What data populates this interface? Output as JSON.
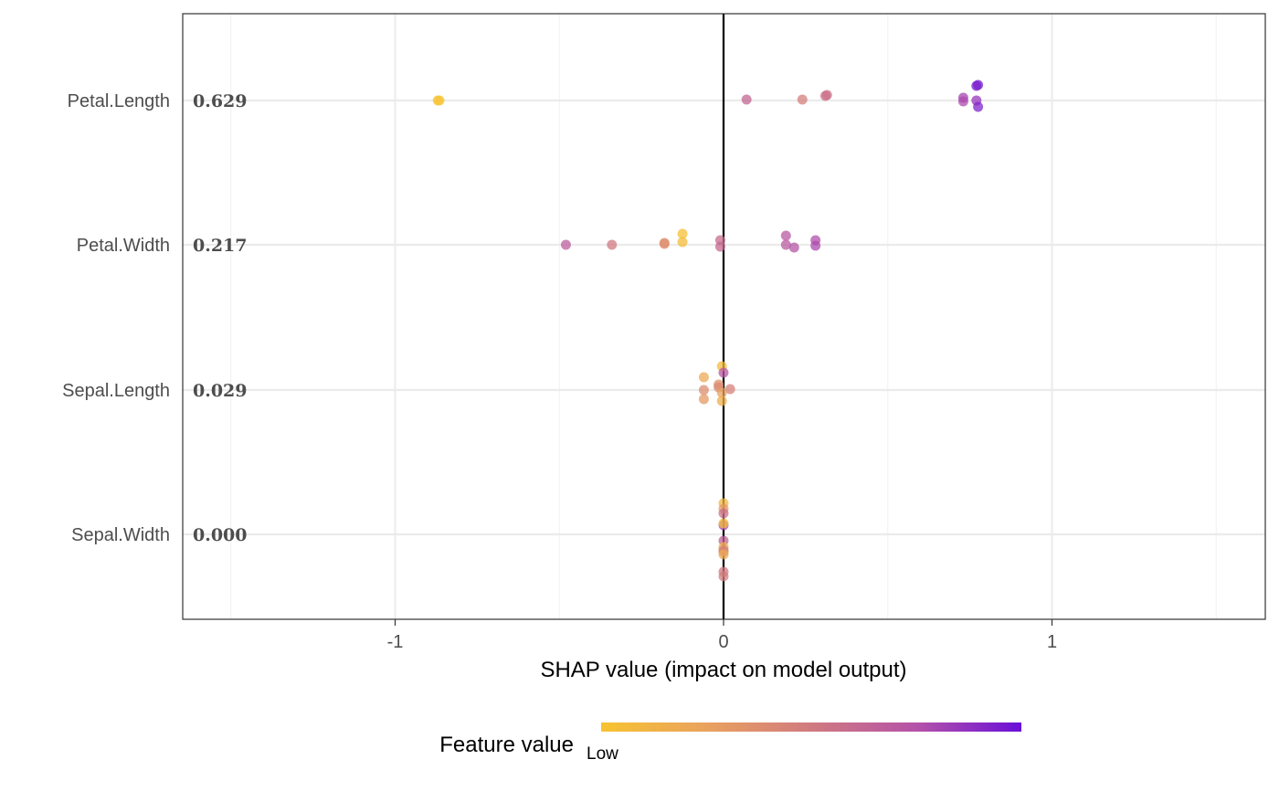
{
  "chart_data": {
    "type": "scatter",
    "xlabel": "SHAP value (impact on model output)",
    "xlim": [
      -1.5,
      1.65
    ],
    "x_ticks": [
      -1,
      0,
      1
    ],
    "x_tick_labels": [
      "-1",
      "0",
      "1"
    ],
    "x_minor_ticks": [
      -1.5,
      -0.5,
      0.5,
      1.5
    ],
    "grid": true,
    "zero_line": 0,
    "features": [
      {
        "name": "Petal.Length",
        "importance": "0.629"
      },
      {
        "name": "Petal.Width",
        "importance": "0.217"
      },
      {
        "name": "Sepal.Length",
        "importance": "0.029"
      },
      {
        "name": "Sepal.Width",
        "importance": "0.000"
      }
    ],
    "points": [
      {
        "feature": "Petal.Length",
        "shap": -0.87,
        "value": 0.0
      },
      {
        "feature": "Petal.Length",
        "shap": -0.865,
        "value": 0.0
      },
      {
        "feature": "Petal.Length",
        "shap": 0.07,
        "value": 0.62
      },
      {
        "feature": "Petal.Length",
        "shap": 0.24,
        "value": 0.47
      },
      {
        "feature": "Petal.Length",
        "shap": 0.315,
        "value": 0.57
      },
      {
        "feature": "Petal.Length",
        "shap": 0.31,
        "value": 0.55
      },
      {
        "feature": "Petal.Length",
        "shap": 0.73,
        "value": 0.8
      },
      {
        "feature": "Petal.Length",
        "shap": 0.73,
        "value": 0.78
      },
      {
        "feature": "Petal.Length",
        "shap": 0.77,
        "value": 0.96
      },
      {
        "feature": "Petal.Length",
        "shap": 0.775,
        "value": 0.95
      },
      {
        "feature": "Petal.Length",
        "shap": 0.77,
        "value": 0.85
      },
      {
        "feature": "Petal.Length",
        "shap": 0.775,
        "value": 0.92
      },
      {
        "feature": "Petal.Width",
        "shap": -0.48,
        "value": 0.68
      },
      {
        "feature": "Petal.Width",
        "shap": -0.34,
        "value": 0.5
      },
      {
        "feature": "Petal.Width",
        "shap": -0.18,
        "value": 0.38
      },
      {
        "feature": "Petal.Width",
        "shap": -0.18,
        "value": 0.36
      },
      {
        "feature": "Petal.Width",
        "shap": -0.125,
        "value": 0.03
      },
      {
        "feature": "Petal.Width",
        "shap": -0.125,
        "value": 0.05
      },
      {
        "feature": "Petal.Width",
        "shap": -0.01,
        "value": 0.58
      },
      {
        "feature": "Petal.Width",
        "shap": -0.01,
        "value": 0.6
      },
      {
        "feature": "Petal.Width",
        "shap": 0.19,
        "value": 0.72
      },
      {
        "feature": "Petal.Width",
        "shap": 0.19,
        "value": 0.7
      },
      {
        "feature": "Petal.Width",
        "shap": 0.215,
        "value": 0.74
      },
      {
        "feature": "Petal.Width",
        "shap": 0.28,
        "value": 0.76
      },
      {
        "feature": "Petal.Width",
        "shap": 0.28,
        "value": 0.78
      },
      {
        "feature": "Sepal.Length",
        "shap": -0.005,
        "value": 0.05
      },
      {
        "feature": "Sepal.Length",
        "shap": 0.0,
        "value": 0.72
      },
      {
        "feature": "Sepal.Length",
        "shap": -0.06,
        "value": 0.2
      },
      {
        "feature": "Sepal.Length",
        "shap": -0.015,
        "value": 0.35
      },
      {
        "feature": "Sepal.Length",
        "shap": -0.015,
        "value": 0.4
      },
      {
        "feature": "Sepal.Length",
        "shap": 0.02,
        "value": 0.45
      },
      {
        "feature": "Sepal.Length",
        "shap": -0.06,
        "value": 0.38
      },
      {
        "feature": "Sepal.Length",
        "shap": -0.06,
        "value": 0.3
      },
      {
        "feature": "Sepal.Length",
        "shap": -0.005,
        "value": 0.25
      },
      {
        "feature": "Sepal.Length",
        "shap": -0.005,
        "value": 0.15
      },
      {
        "feature": "Sepal.Width",
        "shap": 0.0,
        "value": 0.1
      },
      {
        "feature": "Sepal.Width",
        "shap": 0.0,
        "value": 0.3
      },
      {
        "feature": "Sepal.Width",
        "shap": 0.0,
        "value": 0.55
      },
      {
        "feature": "Sepal.Width",
        "shap": 0.0,
        "value": 0.8
      },
      {
        "feature": "Sepal.Width",
        "shap": 0.0,
        "value": 0.05
      },
      {
        "feature": "Sepal.Width",
        "shap": 0.0,
        "value": 0.65
      },
      {
        "feature": "Sepal.Width",
        "shap": 0.0,
        "value": 0.12
      },
      {
        "feature": "Sepal.Width",
        "shap": 0.0,
        "value": 0.4
      },
      {
        "feature": "Sepal.Width",
        "shap": 0.0,
        "value": 0.45
      },
      {
        "feature": "Sepal.Width",
        "shap": 0.0,
        "value": 0.2
      },
      {
        "feature": "Sepal.Width",
        "shap": 0.0,
        "value": 0.5
      },
      {
        "feature": "Sepal.Width",
        "shap": 0.0,
        "value": 0.48
      }
    ],
    "legend": {
      "title": "Feature value",
      "low_label": "Low",
      "placement": "bottom",
      "colors": [
        "#f7c331",
        "#e9a25e",
        "#d07a80",
        "#b553a8",
        "#6a0fd8"
      ]
    }
  }
}
